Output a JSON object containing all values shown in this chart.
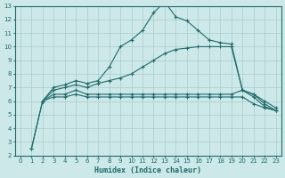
{
  "xlabel": "Humidex (Indice chaleur)",
  "xlim": [
    -0.5,
    23.5
  ],
  "ylim": [
    2,
    13
  ],
  "yticks": [
    2,
    3,
    4,
    5,
    6,
    7,
    8,
    9,
    10,
    11,
    12,
    13
  ],
  "xticks": [
    0,
    1,
    2,
    3,
    4,
    5,
    6,
    7,
    8,
    9,
    10,
    11,
    12,
    13,
    14,
    15,
    16,
    17,
    18,
    19,
    20,
    21,
    22,
    23
  ],
  "bg_color": "#cce8e8",
  "grid_color": "#aacccc",
  "line_color": "#1f6b6b",
  "lines": [
    {
      "x": [
        1,
        2,
        3,
        4,
        5,
        6,
        7,
        8,
        9,
        10,
        11,
        12,
        13,
        14,
        15,
        16,
        17,
        18,
        19,
        20,
        21,
        22,
        23
      ],
      "y": [
        2.5,
        6.0,
        7.0,
        7.2,
        7.5,
        7.3,
        7.5,
        8.5,
        10.0,
        10.5,
        11.2,
        12.5,
        13.3,
        12.2,
        11.9,
        11.2,
        10.5,
        10.3,
        10.2,
        6.8,
        6.3,
        5.6,
        5.3
      ]
    },
    {
      "x": [
        2,
        3,
        4,
        5,
        6,
        7,
        8,
        9,
        10,
        11,
        12,
        13,
        14,
        15,
        16,
        17,
        18,
        19,
        20,
        21,
        22,
        23
      ],
      "y": [
        6.0,
        6.8,
        7.0,
        7.2,
        7.0,
        7.3,
        7.5,
        7.7,
        8.0,
        8.5,
        9.0,
        9.5,
        9.8,
        9.9,
        10.0,
        10.0,
        10.0,
        10.0,
        6.8,
        6.5,
        5.8,
        5.3
      ]
    },
    {
      "x": [
        2,
        3,
        4,
        5,
        6,
        7,
        8,
        9,
        10,
        11,
        12,
        13,
        14,
        15,
        16,
        17,
        18,
        19,
        20,
        21,
        22,
        23
      ],
      "y": [
        6.0,
        6.5,
        6.5,
        6.8,
        6.5,
        6.5,
        6.5,
        6.5,
        6.5,
        6.5,
        6.5,
        6.5,
        6.5,
        6.5,
        6.5,
        6.5,
        6.5,
        6.5,
        6.8,
        6.5,
        6.0,
        5.5
      ]
    },
    {
      "x": [
        1,
        2,
        3,
        4,
        5,
        6,
        7,
        8,
        9,
        10,
        11,
        12,
        13,
        14,
        15,
        16,
        17,
        18,
        19,
        20,
        21,
        22,
        23
      ],
      "y": [
        2.5,
        6.0,
        6.3,
        6.3,
        6.5,
        6.3,
        6.3,
        6.3,
        6.3,
        6.3,
        6.3,
        6.3,
        6.3,
        6.3,
        6.3,
        6.3,
        6.3,
        6.3,
        6.3,
        6.3,
        5.8,
        5.5,
        5.3
      ]
    }
  ]
}
